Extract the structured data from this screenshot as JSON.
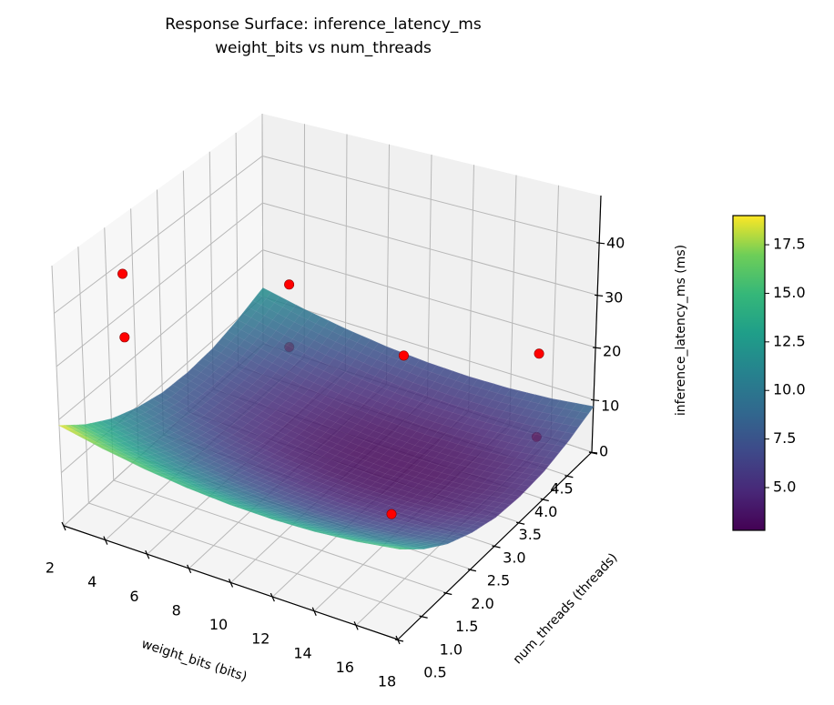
{
  "chart_data": {
    "type": "surface3d",
    "title": "Response Surface: inference_latency_ms",
    "subtitle": "weight_bits vs num_threads",
    "xlabel": "weight_bits (bits)",
    "ylabel": "num_threads (threads)",
    "zlabel": "inference_latency_ms (ms)",
    "xlim": [
      2,
      18
    ],
    "ylim": [
      0.5,
      4.5
    ],
    "zlim": [
      0,
      49
    ],
    "x_ticks": [
      "2",
      "4",
      "6",
      "8",
      "10",
      "12",
      "14",
      "16",
      "18"
    ],
    "y_ticks": [
      "0.5",
      "1.0",
      "1.5",
      "2.0",
      "2.5",
      "3.0",
      "3.5",
      "4.0",
      "4.5"
    ],
    "z_ticks": [
      "0",
      "10",
      "20",
      "30",
      "40"
    ],
    "grid": true,
    "colormap": "viridis",
    "surface": {
      "x": [
        2,
        4,
        6,
        8,
        10,
        12,
        14,
        16,
        18
      ],
      "y": [
        0.5,
        1.0,
        1.5,
        2.0,
        2.5,
        3.0,
        3.5,
        4.0,
        4.5
      ],
      "z": [
        [
          18.9,
          17.1,
          15.7,
          14.7,
          14.1,
          13.9,
          14.1,
          14.7,
          15.7
        ],
        [
          15.0,
          13.2,
          11.8,
          10.8,
          10.2,
          10.0,
          10.2,
          10.8,
          11.8
        ],
        [
          11.9,
          10.1,
          8.7,
          7.7,
          7.1,
          6.9,
          7.1,
          7.7,
          8.7
        ],
        [
          9.8,
          8.0,
          6.6,
          5.6,
          5.0,
          4.8,
          5.0,
          5.6,
          6.6
        ],
        [
          8.4,
          6.6,
          5.2,
          4.2,
          3.6,
          3.4,
          3.6,
          4.2,
          5.2
        ],
        [
          8.0,
          6.2,
          4.8,
          3.8,
          3.2,
          3.0,
          3.2,
          3.8,
          4.8
        ],
        [
          8.4,
          6.6,
          5.2,
          4.2,
          3.6,
          3.4,
          3.6,
          4.2,
          5.2
        ],
        [
          9.8,
          8.0,
          6.6,
          5.6,
          5.0,
          4.8,
          5.0,
          5.6,
          6.6
        ],
        [
          11.9,
          10.1,
          8.7,
          7.7,
          7.1,
          6.9,
          7.1,
          7.7,
          8.7
        ]
      ],
      "opacity": 0.85
    },
    "observed_points": {
      "color": "#ff0000",
      "points": [
        {
          "x": 4,
          "y": 1.0,
          "z": 46
        },
        {
          "x": 4,
          "y": 1.0,
          "z": 34
        },
        {
          "x": 4,
          "y": 4.2,
          "z": 18
        },
        {
          "x": 4,
          "y": 4.2,
          "z": 5
        },
        {
          "x": 10,
          "y": 4.0,
          "z": 13
        },
        {
          "x": 16,
          "y": 4.2,
          "z": 19
        },
        {
          "x": 16,
          "y": 4.2,
          "z": 3
        },
        {
          "x": 16,
          "y": 1.2,
          "z": 14
        }
      ]
    },
    "colorbar": {
      "range": [
        2.8,
        19.0
      ],
      "ticks": [
        "5.0",
        "7.5",
        "10.0",
        "12.5",
        "15.0",
        "17.5"
      ]
    }
  }
}
